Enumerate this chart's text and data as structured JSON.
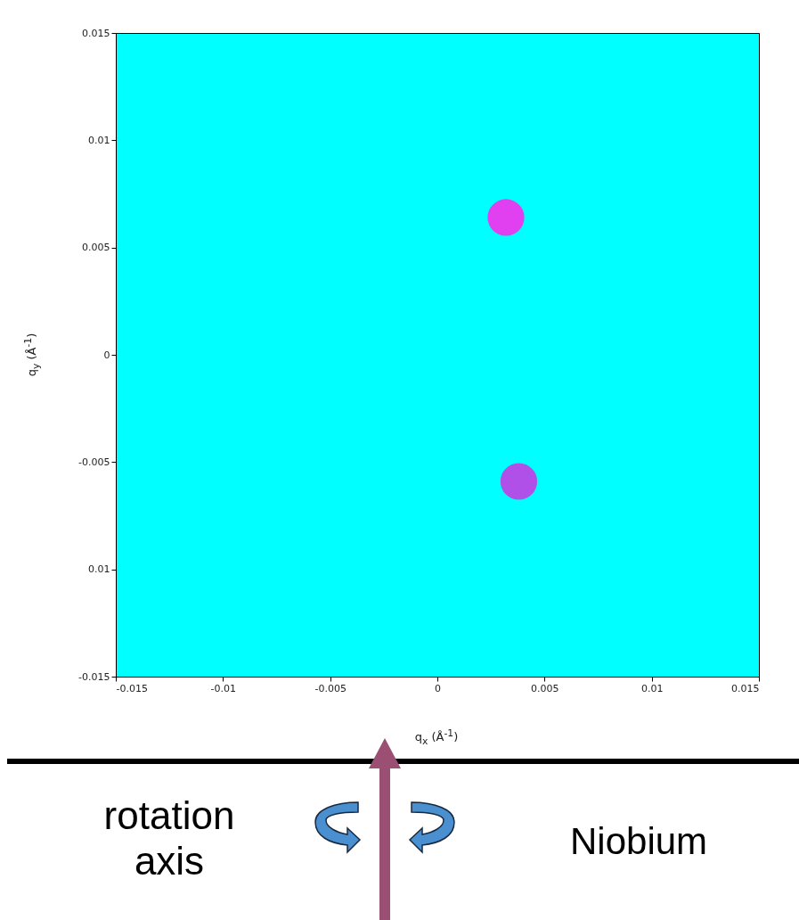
{
  "chart_data": {
    "type": "scatter",
    "xlabel": "q$_{x}$ (Å$^{-1}$)",
    "ylabel": "q$_{y}$ (Å$^{-1}$)",
    "x": [
      0.0032,
      0.0038
    ],
    "values": [
      0.0064,
      -0.0059
    ],
    "colors": [
      "#e040f0",
      "#b050e8"
    ],
    "marker": "circle",
    "grid": false,
    "legend": false,
    "xlim": [
      -0.015,
      0.015
    ],
    "xticks": [
      -0.015,
      -0.01,
      -0.005,
      0,
      0.005,
      0.01,
      0.015
    ],
    "ylim": [
      -0.015,
      0.015
    ],
    "yticks": [
      -0.015,
      {
        "value": -0.01,
        "label": "0.01"
      },
      -0.005,
      0,
      0.005,
      0.01,
      0.015
    ],
    "annotations": [
      "rotation axis",
      "Niobium"
    ]
  }
}
